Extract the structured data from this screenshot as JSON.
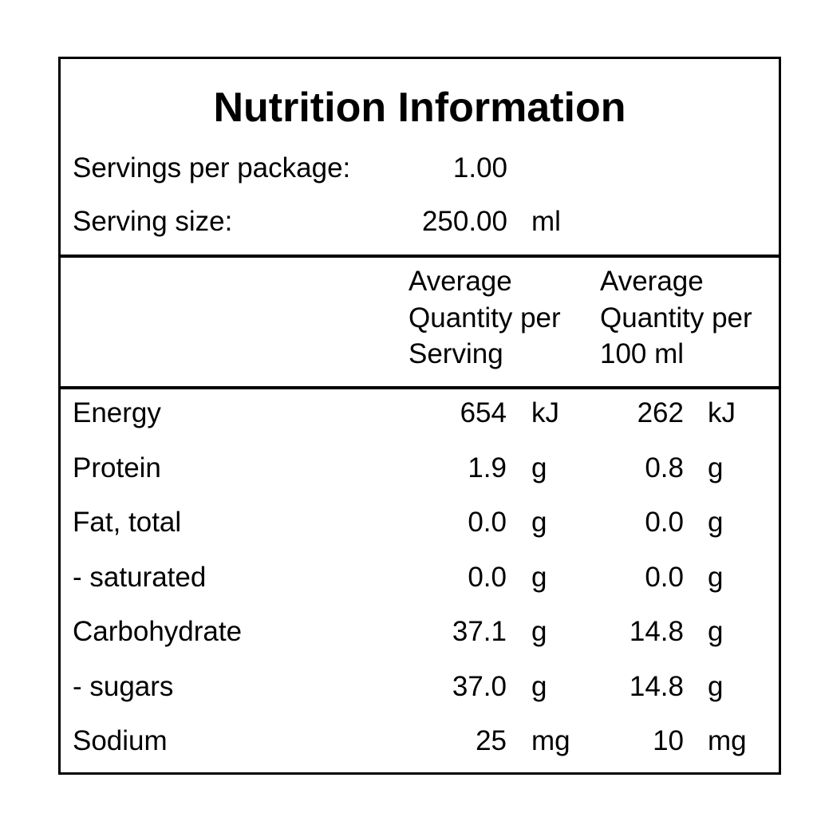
{
  "title": "Nutrition Information",
  "servings": [
    {
      "label": "Servings per package:",
      "value": "1.00"
    },
    {
      "label": "Serving size:",
      "value": "250.00",
      "unit": "ml"
    }
  ],
  "columns": [
    [
      "Average",
      "Quantity per",
      "Serving"
    ],
    [
      "Average",
      "Quantity per",
      "100 ml"
    ]
  ],
  "rows": [
    {
      "name": "Energy",
      "per_serving": "654",
      "per_serving_unit": "kJ",
      "per_100": "262",
      "per_100_unit": "kJ"
    },
    {
      "name": "Protein",
      "per_serving": "1.9",
      "per_serving_unit": "g",
      "per_100": "0.8",
      "per_100_unit": "g"
    },
    {
      "name": "Fat, total",
      "per_serving": "0.0",
      "per_serving_unit": "g",
      "per_100": "0.0",
      "per_100_unit": "g"
    },
    {
      "name": "- saturated",
      "per_serving": "0.0",
      "per_serving_unit": "g",
      "per_100": "0.0",
      "per_100_unit": "g"
    },
    {
      "name": "Carbohydrate",
      "per_serving": "37.1",
      "per_serving_unit": "g",
      "per_100": "14.8",
      "per_100_unit": "g"
    },
    {
      "name": "- sugars",
      "per_serving": "37.0",
      "per_serving_unit": "g",
      "per_100": "14.8",
      "per_100_unit": "g"
    },
    {
      "name": "Sodium",
      "per_serving": "25",
      "per_serving_unit": "mg",
      "per_100": "10",
      "per_100_unit": "mg"
    }
  ]
}
